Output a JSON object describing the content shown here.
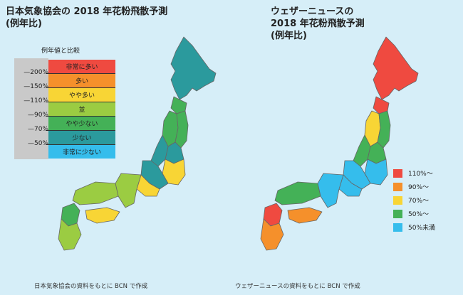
{
  "left": {
    "title_line1": "日本気象協会の 2018 年花粉飛散予測",
    "title_line2": "(例年比)",
    "legend_title": "例年値と比較",
    "ticks": [
      "200%",
      "150%",
      "110%",
      "90%",
      "70%",
      "50%"
    ],
    "bands": [
      {
        "label": "非常に多い",
        "color": "#ef4a40"
      },
      {
        "label": "多い",
        "color": "#f5902b"
      },
      {
        "label": "やや多い",
        "color": "#f8d535"
      },
      {
        "label": "並",
        "color": "#9bcc42"
      },
      {
        "label": "やや少ない",
        "color": "#44b157"
      },
      {
        "label": "少ない",
        "color": "#2b9a9d"
      },
      {
        "label": "非常に少ない",
        "color": "#35bdec"
      }
    ],
    "caption": "日本気象協会の資料をもとに BCN で作成"
  },
  "right": {
    "title_line1": "ウェザーニュースの",
    "title_line2": "2018 年花粉飛散予測",
    "title_line3": "(例年比)",
    "legend": [
      {
        "label": "110%〜",
        "color": "#ef4a40"
      },
      {
        "label": "90%〜",
        "color": "#f5902b"
      },
      {
        "label": "70%〜",
        "color": "#f8d535"
      },
      {
        "label": "50%〜",
        "color": "#44b157"
      },
      {
        "label": "50%未満",
        "color": "#35bdec"
      }
    ],
    "caption": "ウェザーニュースの資料をもとに BCN で作成"
  },
  "colors": {
    "background": "#d6eef8",
    "very_high": "#ef4a40",
    "high": "#f5902b",
    "slightly_high": "#f8d535",
    "normal": "#9bcc42",
    "slightly_low": "#44b157",
    "low": "#2b9a9d",
    "very_low": "#35bdec"
  }
}
